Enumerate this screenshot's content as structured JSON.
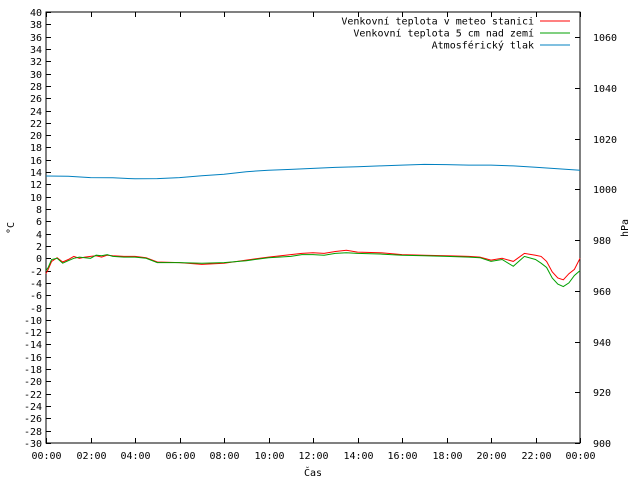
{
  "chart_data": {
    "type": "line",
    "xlabel": "Čas",
    "ylabel": "°C",
    "y2label": "hPa",
    "x_ticks": [
      "00:00",
      "02:00",
      "04:00",
      "06:00",
      "08:00",
      "10:00",
      "12:00",
      "14:00",
      "16:00",
      "18:00",
      "20:00",
      "22:00",
      "00:00"
    ],
    "x_range_hours": [
      0,
      24
    ],
    "ylim": [
      -30,
      40
    ],
    "y_tick_step": 2,
    "y2lim": [
      900,
      1070
    ],
    "y2_ticks": [
      900,
      920,
      940,
      960,
      980,
      1000,
      1020,
      1040,
      1060
    ],
    "grid": false,
    "legend_position": "top-right",
    "series": [
      {
        "name": "Venkovní teplota v meteo stanici",
        "axis": "y",
        "color": "#ff0000",
        "x": [
          0.0,
          0.1,
          0.25,
          0.5,
          0.75,
          1.0,
          1.25,
          1.5,
          1.75,
          2.0,
          2.25,
          2.5,
          2.75,
          3.0,
          3.5,
          4.0,
          4.5,
          5.0,
          6.0,
          7.0,
          8.0,
          9.0,
          10.0,
          11.0,
          11.5,
          12.0,
          12.5,
          13.0,
          13.5,
          14.0,
          15.0,
          16.0,
          17.0,
          18.0,
          19.0,
          19.5,
          20.0,
          20.5,
          21.0,
          21.5,
          22.0,
          22.25,
          22.5,
          22.75,
          23.0,
          23.25,
          23.5,
          23.75,
          24.0
        ],
        "values": [
          -2.5,
          -1.8,
          -0.5,
          0.1,
          -0.6,
          -0.2,
          0.3,
          0.0,
          0.2,
          0.3,
          0.4,
          0.2,
          0.5,
          0.4,
          0.3,
          0.3,
          0.1,
          -0.6,
          -0.7,
          -1.0,
          -0.8,
          -0.3,
          0.2,
          0.6,
          0.8,
          0.9,
          0.8,
          1.1,
          1.3,
          1.0,
          0.9,
          0.6,
          0.5,
          0.4,
          0.3,
          0.2,
          -0.3,
          0.0,
          -0.5,
          0.8,
          0.5,
          0.3,
          -0.5,
          -2.2,
          -3.2,
          -3.5,
          -2.5,
          -1.8,
          0.0
        ]
      },
      {
        "name": "Venkovní teplota 5 cm nad zemí",
        "axis": "y",
        "color": "#00a000",
        "x": [
          0.0,
          0.1,
          0.25,
          0.5,
          0.75,
          1.0,
          1.25,
          1.5,
          1.75,
          2.0,
          2.25,
          2.5,
          2.75,
          3.0,
          3.5,
          4.0,
          4.5,
          5.0,
          6.0,
          7.0,
          8.0,
          9.0,
          10.0,
          11.0,
          11.5,
          12.0,
          12.5,
          13.0,
          13.5,
          14.0,
          15.0,
          16.0,
          17.0,
          18.0,
          19.0,
          19.5,
          20.0,
          20.5,
          21.0,
          21.5,
          22.0,
          22.25,
          22.5,
          22.75,
          23.0,
          23.25,
          23.5,
          23.75,
          24.0
        ],
        "values": [
          -2.0,
          -1.5,
          -0.2,
          0.0,
          -0.8,
          -0.4,
          0.0,
          0.2,
          0.1,
          0.0,
          0.5,
          0.4,
          0.6,
          0.3,
          0.2,
          0.2,
          0.0,
          -0.7,
          -0.7,
          -0.8,
          -0.7,
          -0.4,
          0.1,
          0.3,
          0.6,
          0.6,
          0.5,
          0.8,
          0.9,
          0.8,
          0.7,
          0.5,
          0.4,
          0.3,
          0.2,
          0.1,
          -0.5,
          -0.2,
          -1.3,
          0.3,
          -0.2,
          -0.8,
          -1.5,
          -3.2,
          -4.2,
          -4.6,
          -4.0,
          -2.8,
          -2.0
        ]
      },
      {
        "name": "Atmosférický tlak",
        "axis": "y2",
        "color": "#0080c0",
        "x": [
          0,
          1,
          2,
          3,
          4,
          5,
          6,
          7,
          8,
          9,
          10,
          11,
          12,
          13,
          14,
          15,
          16,
          17,
          18,
          19,
          20,
          21,
          22,
          23,
          24
        ],
        "values": [
          1005.3,
          1005.2,
          1004.7,
          1004.6,
          1004.2,
          1004.3,
          1004.7,
          1005.4,
          1006.0,
          1007.0,
          1007.6,
          1007.9,
          1008.3,
          1008.7,
          1009.0,
          1009.3,
          1009.6,
          1009.9,
          1009.8,
          1009.6,
          1009.6,
          1009.3,
          1008.8,
          1008.2,
          1007.6
        ]
      }
    ]
  }
}
